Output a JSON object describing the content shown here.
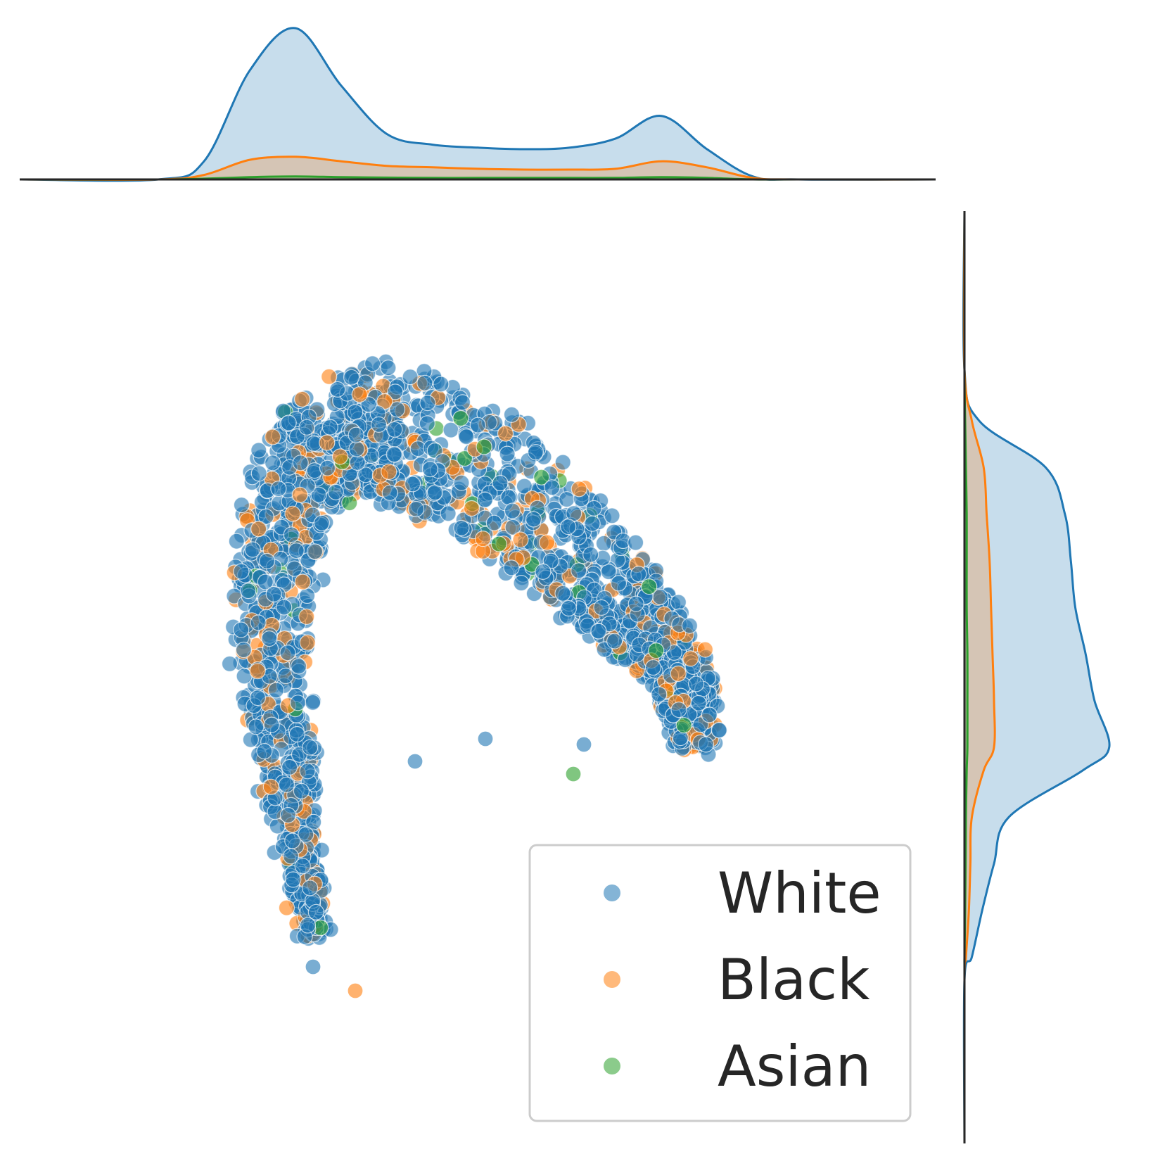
{
  "chart_data": {
    "type": "scatter",
    "subtype": "jointplot-with-marginal-kde",
    "title": "",
    "xlabel": "",
    "ylabel": "",
    "xlim": [
      -1.0,
      1.0
    ],
    "ylim": [
      -1.0,
      1.0
    ],
    "grid": false,
    "axes_visible": false,
    "legend": {
      "placement": "lower-right",
      "frame": true
    },
    "series": [
      {
        "name": "White",
        "color": "#1f77b4"
      },
      {
        "name": "Black",
        "color": "#ff7f0e"
      },
      {
        "name": "Asian",
        "color": "#2ca02c"
      }
    ],
    "point_alpha": 0.6,
    "point_edge_color": "#ffffff",
    "marginal_kde_x": {
      "x": [
        -1.0,
        -0.7,
        -0.6,
        -0.5,
        -0.4,
        -0.3,
        -0.2,
        -0.1,
        0.0,
        0.1,
        0.2,
        0.3,
        0.4,
        0.5,
        0.6,
        0.7,
        1.0
      ],
      "series": [
        {
          "name": "White",
          "density": [
            0.0,
            0.0,
            0.12,
            0.72,
            1.0,
            0.62,
            0.3,
            0.23,
            0.21,
            0.2,
            0.21,
            0.27,
            0.42,
            0.2,
            0.02,
            0.0,
            0.0
          ]
        },
        {
          "name": "Black",
          "density": [
            0.0,
            0.0,
            0.03,
            0.13,
            0.15,
            0.12,
            0.09,
            0.08,
            0.07,
            0.065,
            0.065,
            0.07,
            0.12,
            0.08,
            0.01,
            0.0,
            0.0
          ]
        },
        {
          "name": "Asian",
          "density": [
            0.0,
            0.0,
            0.005,
            0.015,
            0.02,
            0.015,
            0.012,
            0.01,
            0.01,
            0.01,
            0.01,
            0.01,
            0.015,
            0.01,
            0.0,
            0.0,
            0.0
          ]
        }
      ]
    },
    "marginal_kde_y": {
      "y": [
        1.0,
        0.66,
        0.55,
        0.45,
        0.35,
        0.25,
        0.15,
        0.05,
        -0.05,
        -0.15,
        -0.2,
        -0.3,
        -0.4,
        -0.5,
        -0.6,
        -0.65,
        -1.0
      ],
      "series": [
        {
          "name": "White",
          "density": [
            0.0,
            0.0,
            0.1,
            0.55,
            0.68,
            0.72,
            0.75,
            0.82,
            0.88,
            0.98,
            0.8,
            0.3,
            0.2,
            0.12,
            0.05,
            0.0,
            0.0
          ]
        },
        {
          "name": "Black",
          "density": [
            0.0,
            0.0,
            0.05,
            0.13,
            0.15,
            0.17,
            0.18,
            0.19,
            0.2,
            0.2,
            0.13,
            0.05,
            0.04,
            0.03,
            0.01,
            0.0,
            0.0
          ]
        },
        {
          "name": "Asian",
          "density": [
            0.0,
            0.0,
            0.005,
            0.01,
            0.015,
            0.015,
            0.015,
            0.02,
            0.02,
            0.02,
            0.015,
            0.01,
            0.008,
            0.005,
            0.0,
            0.0,
            0.0
          ]
        }
      ]
    }
  }
}
